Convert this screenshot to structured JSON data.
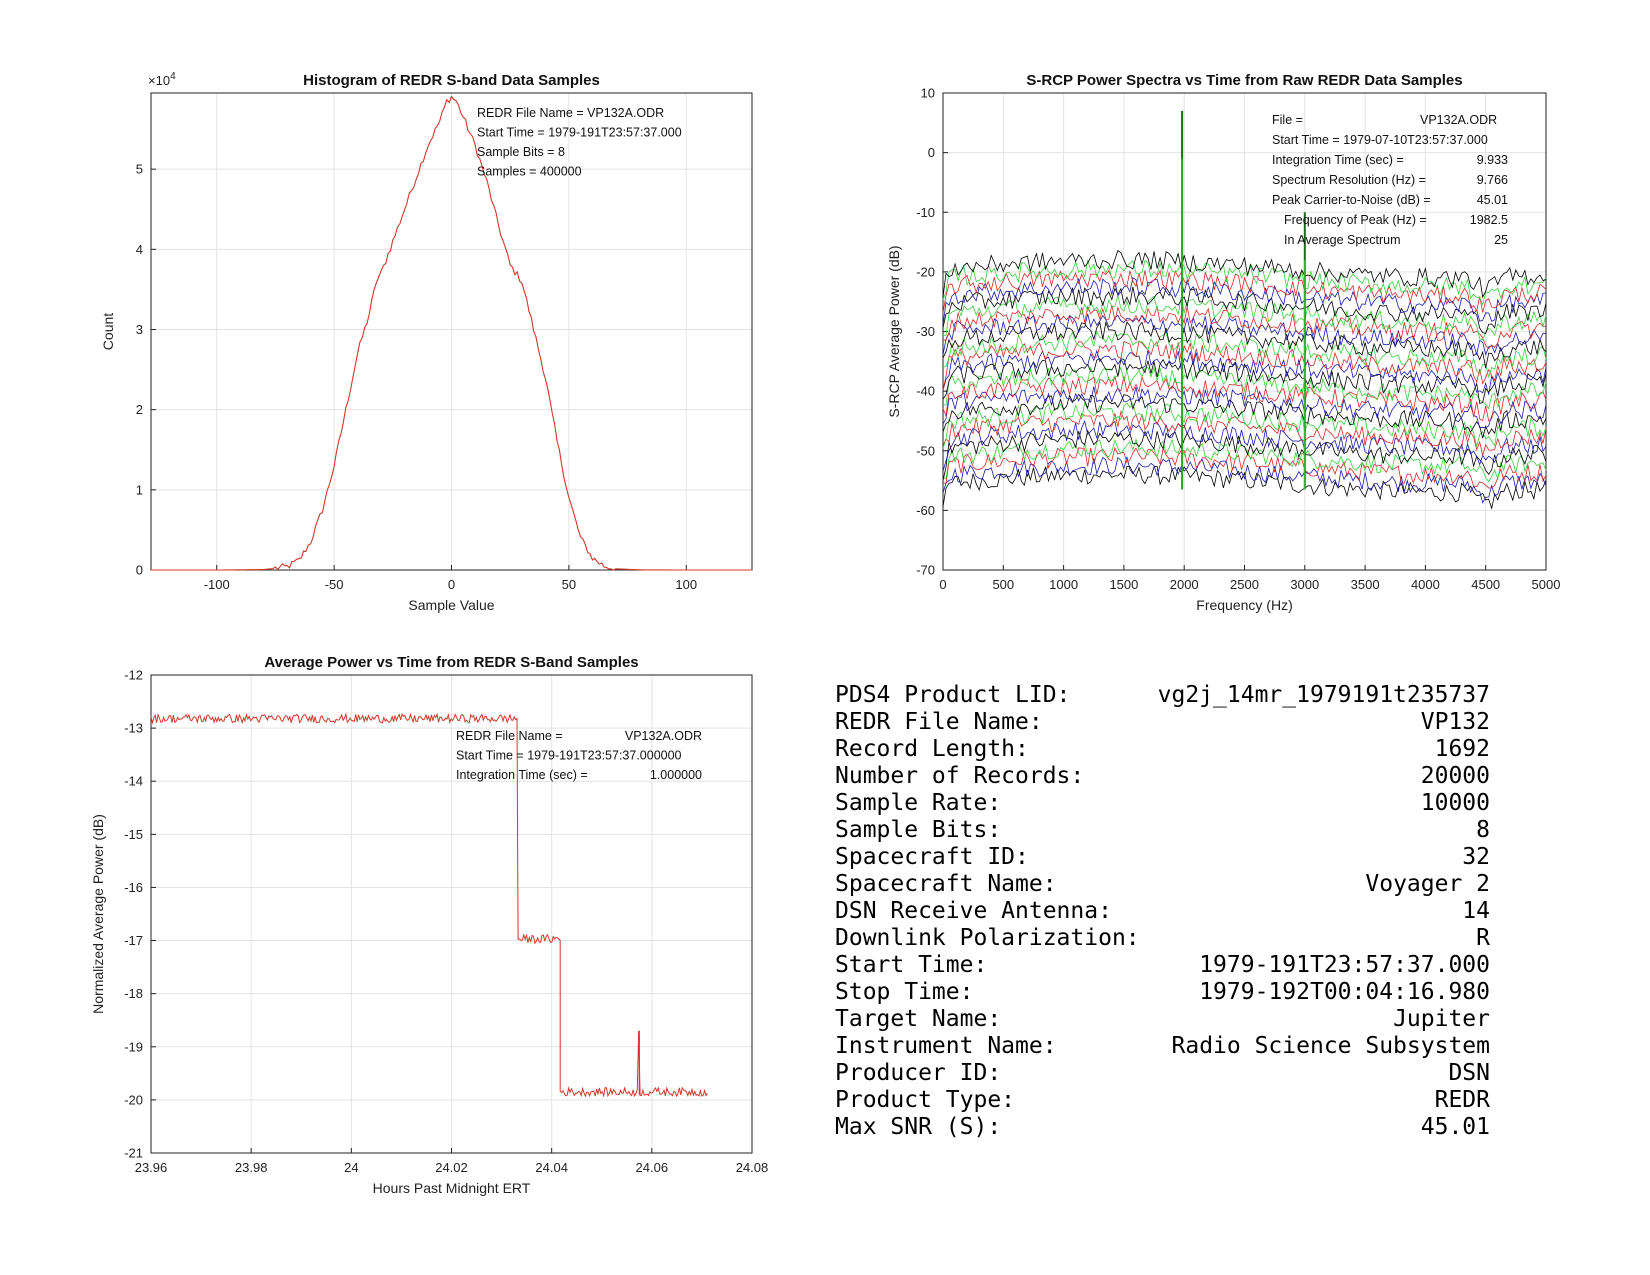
{
  "chart_data": [
    {
      "type": "area",
      "id": "histogram",
      "title": "Histogram of REDR S-band Data Samples",
      "xlabel": "Sample Value",
      "ylabel": "Count",
      "xlim": [
        -128,
        128
      ],
      "ylim": [
        0,
        59500
      ],
      "xticks": [
        -100,
        -50,
        0,
        50,
        100
      ],
      "xtick_labels": [
        "-100",
        "-50",
        "0",
        "50",
        "100"
      ],
      "yticks": [
        0,
        10000,
        20000,
        30000,
        40000,
        50000
      ],
      "ytick_labels": [
        "0",
        "1",
        "2",
        "3",
        "4",
        "5"
      ],
      "exponent_label": "×10",
      "exponent_power": "4",
      "grid": true,
      "series_color": "#d03a2a",
      "x": [
        -128,
        -100,
        -80,
        -70,
        -65,
        -60,
        -55,
        -50,
        -45,
        -40,
        -35,
        -32,
        -30,
        -25,
        -20,
        -15,
        -10,
        -5,
        -2,
        0,
        2,
        5,
        10,
        15,
        20,
        25,
        30,
        35,
        40,
        45,
        50,
        55,
        60,
        65,
        70,
        80,
        100,
        128
      ],
      "values": [
        0,
        0,
        50,
        400,
        1200,
        3500,
        7500,
        13000,
        20000,
        27000,
        32000,
        36000,
        37000,
        41000,
        45000,
        49000,
        53000,
        56000,
        58500,
        59000,
        58500,
        56500,
        53000,
        48500,
        43000,
        38000,
        36000,
        30000,
        24000,
        16000,
        9000,
        4000,
        1500,
        500,
        150,
        20,
        0,
        0
      ],
      "annotations": [
        "REDR File Name = VP132A.ODR",
        "Start Time = 1979-191T23:57:37.000",
        "Sample Bits = 8",
        "Samples = 400000"
      ]
    },
    {
      "type": "line",
      "id": "spectra",
      "title": "S-RCP Power Spectra vs Time from Raw REDR Data Samples",
      "xlabel": "Frequency (Hz)",
      "ylabel": "S-RCP Average Power (dB)",
      "xlim": [
        0,
        5000
      ],
      "ylim": [
        -70,
        10
      ],
      "xticks": [
        0,
        500,
        1000,
        1500,
        2000,
        2500,
        3000,
        3500,
        4000,
        4500,
        5000
      ],
      "xtick_labels": [
        "0",
        "500",
        "1000",
        "1500",
        "2000",
        "2500",
        "3000",
        "3500",
        "4000",
        "4500",
        "5000"
      ],
      "yticks": [
        -70,
        -60,
        -50,
        -40,
        -30,
        -20,
        -10,
        0,
        10
      ],
      "ytick_labels": [
        "-70",
        "-60",
        "-50",
        "-40",
        "-30",
        "-20",
        "-10",
        "0",
        "10"
      ],
      "grid": true,
      "trace_count": 25,
      "trace_offsets_db": [
        -55.5,
        -54,
        -52.5,
        -51,
        -49.5,
        -48,
        -46.5,
        -45,
        -43.5,
        -42,
        -40.5,
        -39,
        -37.5,
        -36,
        -34.5,
        -33,
        -31.5,
        -30,
        -28.5,
        -27,
        -25.5,
        -24,
        -22.5,
        -21,
        -19.5
      ],
      "trace_colors": [
        "#000000",
        "#1a1aa8",
        "#d22b2b",
        "#3ccf3c"
      ],
      "peaks_hz": [
        1982.5,
        3000
      ],
      "peak_levels_db": [
        7,
        -10
      ],
      "annotation_rows": [
        {
          "label": "File =",
          "value": "VP132A.ODR"
        },
        {
          "label": "Start Time = 1979-07-10T23:57:37.000",
          "value": ""
        },
        {
          "label": "Integration Time (sec) =",
          "value": "9.933"
        },
        {
          "label": "Spectrum Resolution (Hz) =",
          "value": "9.766"
        },
        {
          "label": "Peak Carrier-to-Noise (dB) =",
          "value": "45.01"
        },
        {
          "label": "Frequency of Peak (Hz) =",
          "value": "1982.5"
        },
        {
          "label": "In Average Spectrum",
          "value": "25"
        }
      ]
    },
    {
      "type": "line",
      "id": "power",
      "title": "Average Power vs Time from REDR S-Band Samples",
      "xlabel": "Hours Past Midnight ERT",
      "ylabel": "Normalized Average Power (dB)",
      "xlim": [
        23.96,
        24.08
      ],
      "ylim": [
        -21,
        -12
      ],
      "xticks": [
        23.96,
        23.98,
        24.0,
        24.02,
        24.04,
        24.06,
        24.08
      ],
      "xtick_labels": [
        "23.96",
        "23.98",
        "24",
        "24.02",
        "24.04",
        "24.06",
        "24.08"
      ],
      "yticks": [
        -21,
        -20,
        -19,
        -18,
        -17,
        -16,
        -15,
        -14,
        -13,
        -12
      ],
      "ytick_labels": [
        "-21",
        "-20",
        "-19",
        "-18",
        "-17",
        "-16",
        "-15",
        "-14",
        "-13",
        "-12"
      ],
      "grid": true,
      "series_color": "#d03a2a",
      "segments": [
        {
          "x_start": 23.96,
          "x_end": 24.0333,
          "level": -12.82
        },
        {
          "x_start": 24.0333,
          "x_end": 24.0417,
          "level": -16.97
        },
        {
          "x_start": 24.0417,
          "x_end": 24.0711,
          "level": -19.85
        }
      ],
      "spikes": [
        {
          "x": 24.0575,
          "y": -18.7
        },
        {
          "x": 24.0333,
          "y": -13.8
        }
      ],
      "annotation_rows": [
        {
          "label": "REDR File Name =",
          "value": "VP132A.ODR"
        },
        {
          "label": "Start Time = 1979-191T23:57:37.000000",
          "value": ""
        },
        {
          "label": "Integration Time (sec) =",
          "value": "1.000000"
        }
      ]
    }
  ],
  "info": [
    {
      "label": "PDS4 Product LID:",
      "value": "vg2j_14mr_1979191t235737"
    },
    {
      "label": "REDR File Name:",
      "value": "VP132"
    },
    {
      "label": "Record Length:",
      "value": "1692"
    },
    {
      "label": "Number of Records:",
      "value": "20000"
    },
    {
      "label": "Sample Rate:",
      "value": "10000"
    },
    {
      "label": "Sample Bits:",
      "value": "8"
    },
    {
      "label": "Spacecraft ID:",
      "value": "32"
    },
    {
      "label": "Spacecraft Name:",
      "value": "Voyager 2"
    },
    {
      "label": "DSN Receive Antenna:",
      "value": "14"
    },
    {
      "label": "Downlink Polarization:",
      "value": "R"
    },
    {
      "label": "Start Time:",
      "value": "1979-191T23:57:37.000"
    },
    {
      "label": "Stop Time:",
      "value": "1979-192T00:04:16.980"
    },
    {
      "label": "Target Name:",
      "value": "Jupiter"
    },
    {
      "label": "Instrument Name:",
      "value": "Radio Science Subsystem"
    },
    {
      "label": "Producer ID:",
      "value": "DSN"
    },
    {
      "label": "Product Type:",
      "value": "REDR"
    },
    {
      "label": "Max SNR (S):",
      "value": "45.01"
    }
  ]
}
